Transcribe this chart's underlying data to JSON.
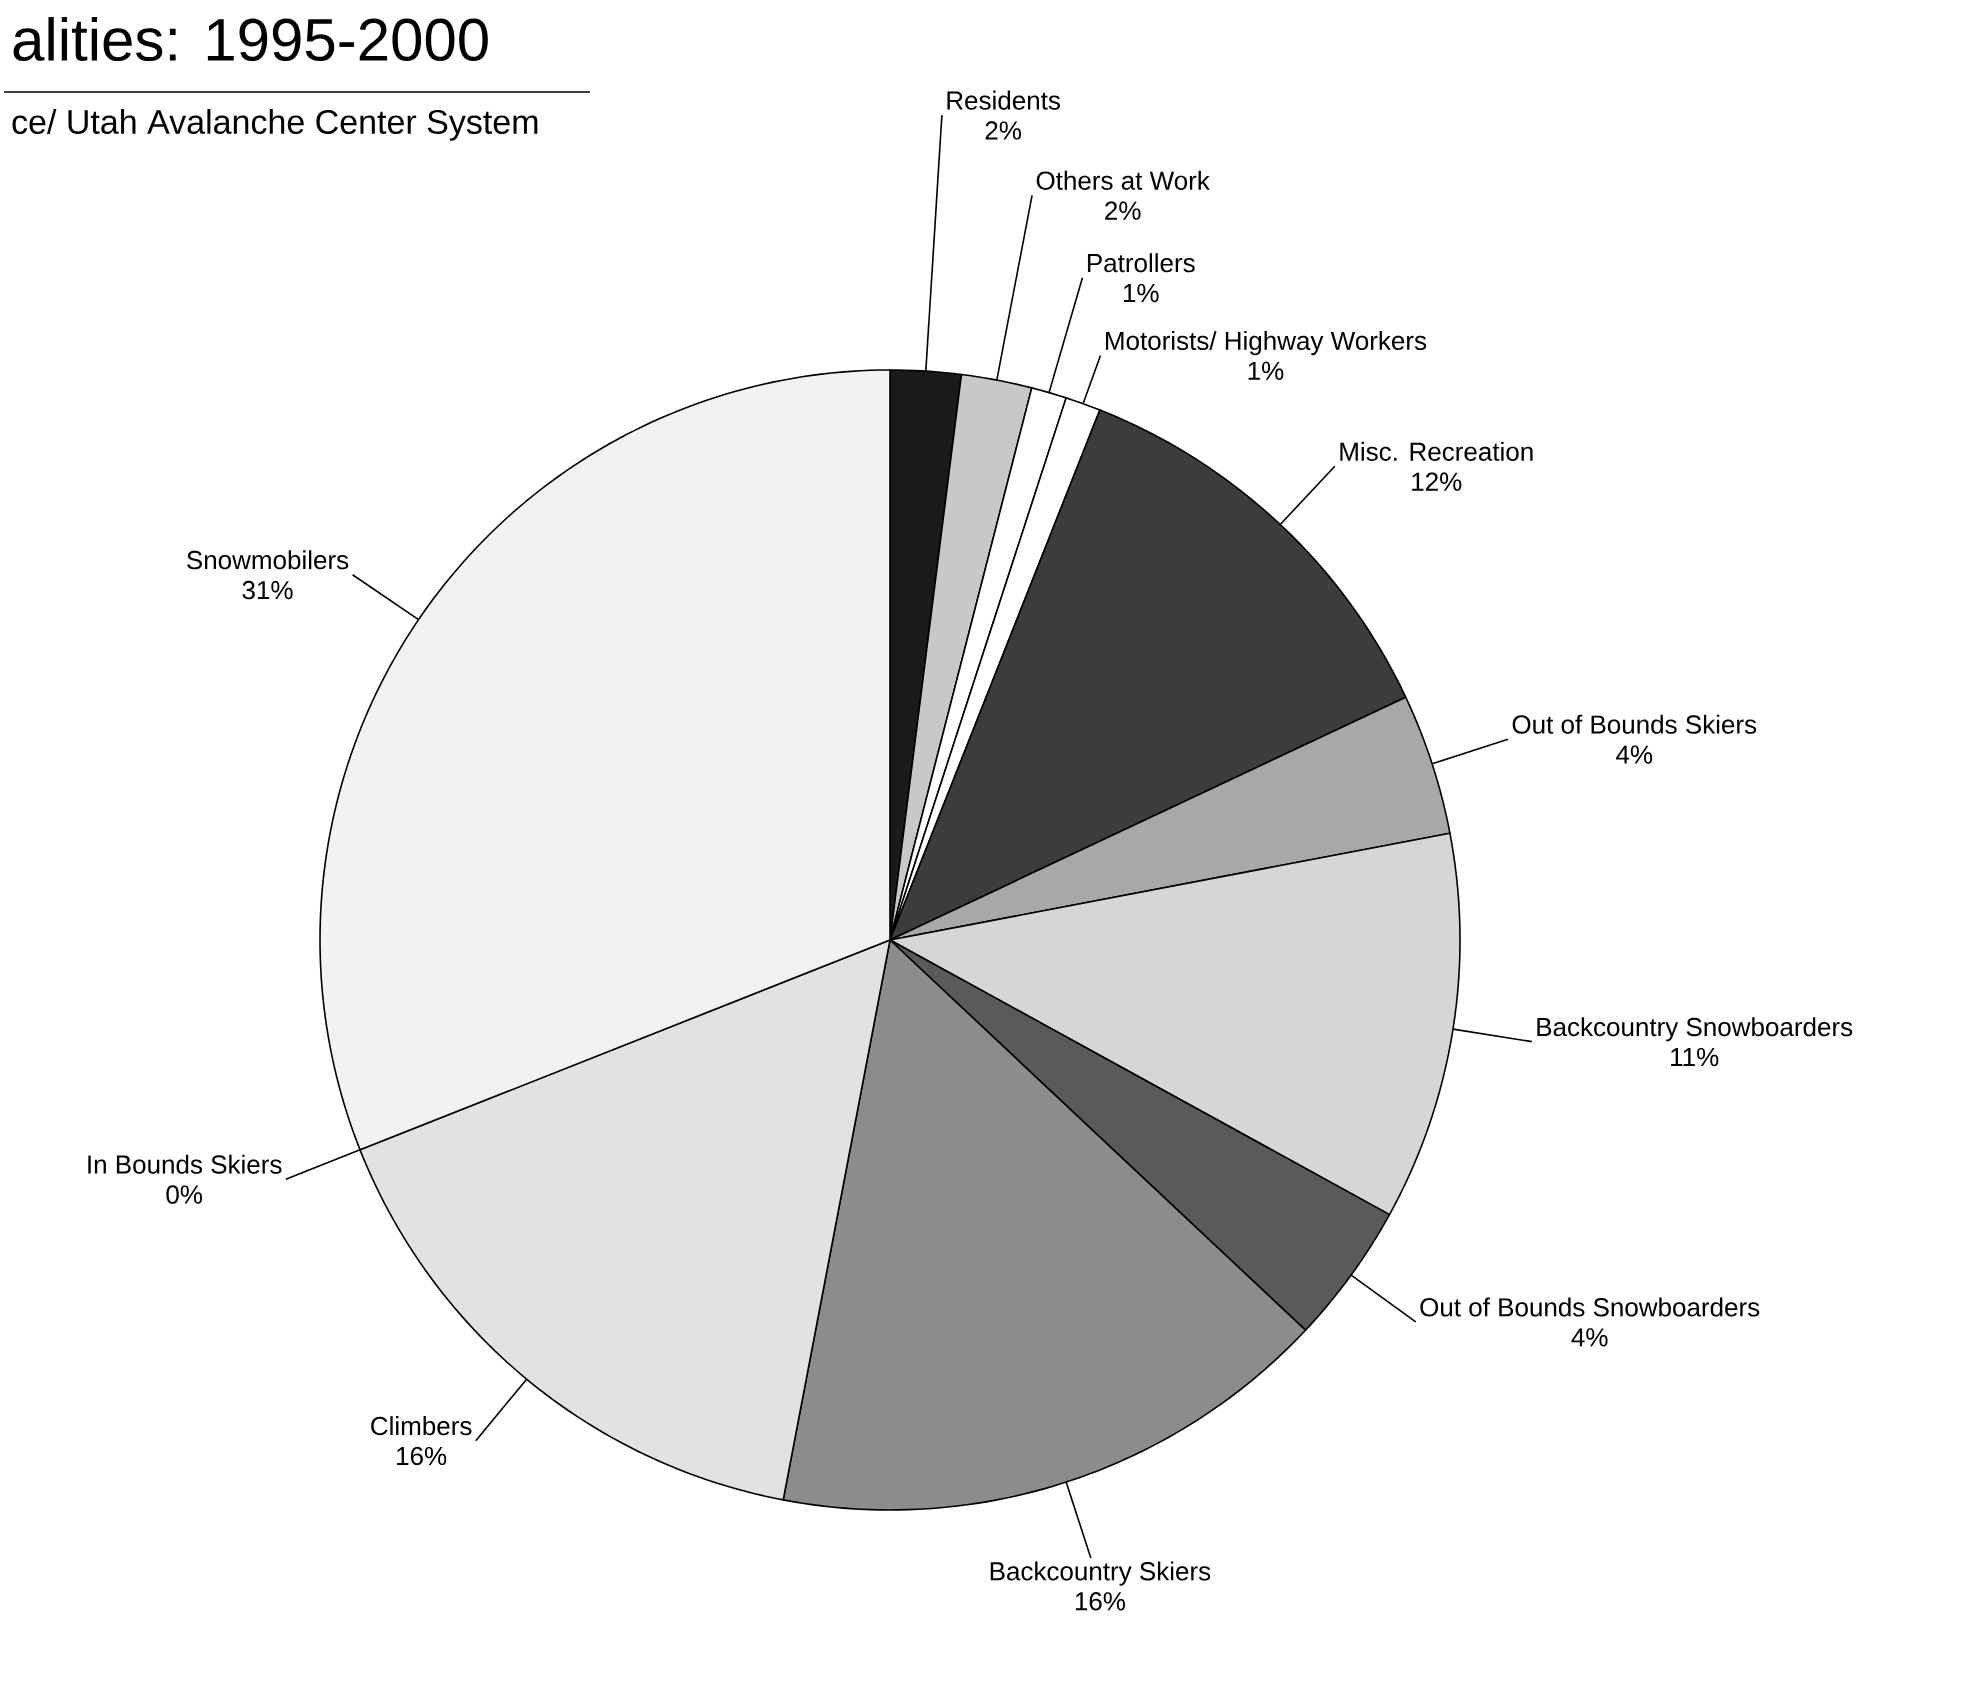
{
  "chart_data": {
    "type": "pie",
    "title": "alities: 1995-2000",
    "subtitle": "ce/ Utah Avalanche Center System",
    "categories": [
      "Residents",
      "Others at Work",
      "Patrollers",
      "Motorists/ Highway Workers",
      "Misc. Recreation",
      "Out of Bounds Skiers",
      "Backcountry Snowboarders",
      "Out of Bounds Snowboarders",
      "Backcountry Skiers",
      "Climbers",
      "In Bounds Skiers",
      "Snowmobilers"
    ],
    "values": [
      2,
      2,
      1,
      1,
      12,
      4,
      11,
      4,
      16,
      16,
      0,
      31
    ],
    "colors": [
      "#1a1a1a",
      "#c8c8c8",
      "#ffffff",
      "#ffffff",
      "#3c3c3c",
      "#a8a8a8",
      "#d6d6d6",
      "#5a5a5a",
      "#8c8c8c",
      "#e2e2e2",
      "#ffffff",
      "#f2f2f2"
    ],
    "value_labels": [
      "2%",
      "2%",
      "1%",
      "1%",
      "12%",
      "4%",
      "11%",
      "4%",
      "16%",
      "16%",
      "0%",
      "31%"
    ]
  }
}
